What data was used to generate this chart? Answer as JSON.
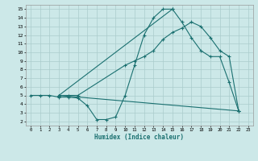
{
  "xlabel": "Humidex (Indice chaleur)",
  "bg_color": "#cce8e8",
  "grid_color": "#aacccc",
  "line_color": "#1a7070",
  "xlim": [
    -0.5,
    23.5
  ],
  "ylim": [
    1.5,
    15.5
  ],
  "xticks": [
    0,
    1,
    2,
    3,
    4,
    5,
    6,
    7,
    8,
    9,
    10,
    11,
    12,
    13,
    14,
    15,
    16,
    17,
    18,
    19,
    20,
    21,
    22,
    23
  ],
  "yticks": [
    2,
    3,
    4,
    5,
    6,
    7,
    8,
    9,
    10,
    11,
    12,
    13,
    14,
    15
  ],
  "line1_x": [
    0,
    1,
    2,
    3,
    4,
    5,
    6,
    7,
    8,
    9,
    10,
    11,
    12,
    13,
    14,
    15,
    16,
    17,
    18,
    19,
    20,
    21,
    22
  ],
  "line1_y": [
    5,
    5,
    5,
    4.8,
    4.8,
    4.7,
    3.8,
    2.2,
    2.2,
    2.5,
    5.0,
    8.5,
    12.0,
    14.0,
    15.0,
    15.0,
    13.5,
    11.7,
    10.2,
    9.5,
    9.5,
    6.5,
    3.2
  ],
  "line2_x": [
    3,
    4,
    5,
    10,
    11,
    12,
    13,
    14,
    15,
    16,
    17,
    18,
    19,
    20,
    21,
    22
  ],
  "line2_y": [
    5,
    5,
    5,
    8.5,
    9.0,
    9.5,
    10.2,
    11.5,
    12.3,
    12.8,
    13.5,
    13.0,
    11.7,
    10.2,
    9.5,
    3.2
  ],
  "line3_x": [
    3,
    22
  ],
  "line3_y": [
    5,
    3.2
  ],
  "line4_x": [
    3,
    15
  ],
  "line4_y": [
    5,
    15.0
  ]
}
